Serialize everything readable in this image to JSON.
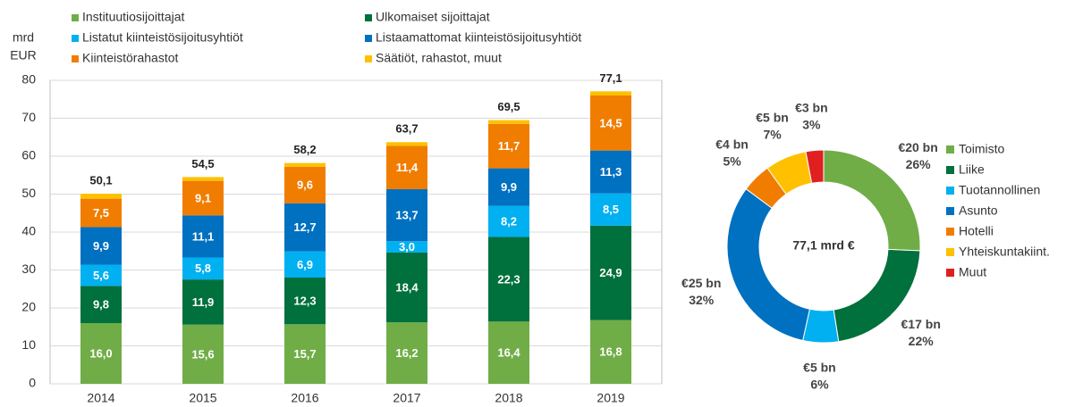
{
  "chart_data": [
    {
      "type": "stacked_bar",
      "y_label_lines": [
        "mrd",
        "EUR"
      ],
      "categories": [
        "2014",
        "2015",
        "2016",
        "2017",
        "2018",
        "2019"
      ],
      "series": [
        {
          "name": "Instituutiosijoittajat",
          "color": "#70ad47",
          "values": [
            16.0,
            15.6,
            15.7,
            16.2,
            16.4,
            16.8
          ],
          "value_labels": [
            "16,0",
            "15,6",
            "15,7",
            "16,2",
            "16,4",
            "16,8"
          ]
        },
        {
          "name": "Ulkomaiset sijoittajat",
          "color": "#00703c",
          "values": [
            9.8,
            11.9,
            12.3,
            18.4,
            22.3,
            24.9
          ],
          "value_labels": [
            "9,8",
            "11,9",
            "12,3",
            "18,4",
            "22,3",
            "24,9"
          ]
        },
        {
          "name": "Listatut kiinteistösijoitusyhtiöt",
          "color": "#00b0f0",
          "values": [
            5.6,
            5.8,
            6.9,
            3.0,
            8.2,
            8.5
          ],
          "value_labels": [
            "5,6",
            "5,8",
            "6,9",
            "3,0",
            "8,2",
            "8,5"
          ]
        },
        {
          "name": "Listaamattomat kiinteistösijoitusyhtiöt",
          "color": "#0070c0",
          "values": [
            9.9,
            11.1,
            12.7,
            13.7,
            9.9,
            11.3
          ],
          "value_labels": [
            "9,9",
            "11,1",
            "12,7",
            "13,7",
            "9,9",
            "11,3"
          ]
        },
        {
          "name": "Kiinteistörahastot",
          "color": "#f07d00",
          "values": [
            7.5,
            9.1,
            9.6,
            11.4,
            11.7,
            14.5
          ],
          "value_labels": [
            "7,5",
            "9,1",
            "9,6",
            "11,4",
            "11,7",
            "14,5"
          ]
        },
        {
          "name": "Säätiöt, rahastot, muut",
          "color": "#ffc000",
          "values": [
            1.3,
            1.0,
            1.0,
            1.0,
            1.0,
            1.1
          ]
        }
      ],
      "totals": [
        50.1,
        54.5,
        58.2,
        63.7,
        69.5,
        77.1
      ],
      "total_labels": [
        "50,1",
        "54,5",
        "58,2",
        "63,7",
        "69,5",
        "77,1"
      ],
      "ylim": [
        0,
        80
      ],
      "yticks": [
        0,
        10,
        20,
        30,
        40,
        50,
        60,
        70,
        80
      ],
      "grid": true
    },
    {
      "type": "donut",
      "center_label": "77,1 mrd €",
      "categories": [
        "Toimisto",
        "Liike",
        "Tuotannollinen",
        "Asunto",
        "Hotelli",
        "Yhteiskuntakiint.",
        "Muut"
      ],
      "colors": [
        "#70ad47",
        "#00703c",
        "#00b0f0",
        "#0070c0",
        "#f07d00",
        "#ffc000",
        "#e02020"
      ],
      "values": [
        26,
        22,
        6,
        32,
        5,
        7,
        3
      ],
      "value_labels": [
        "26%",
        "22%",
        "6%",
        "32%",
        "5%",
        "7%",
        "3%"
      ],
      "amounts": [
        20,
        17,
        5,
        25,
        4,
        5,
        3
      ],
      "amount_labels": [
        "€20 bn",
        "€17 bn",
        "€5 bn",
        "€25 bn",
        "€4 bn",
        "€5 bn",
        "€3 bn"
      ]
    }
  ]
}
